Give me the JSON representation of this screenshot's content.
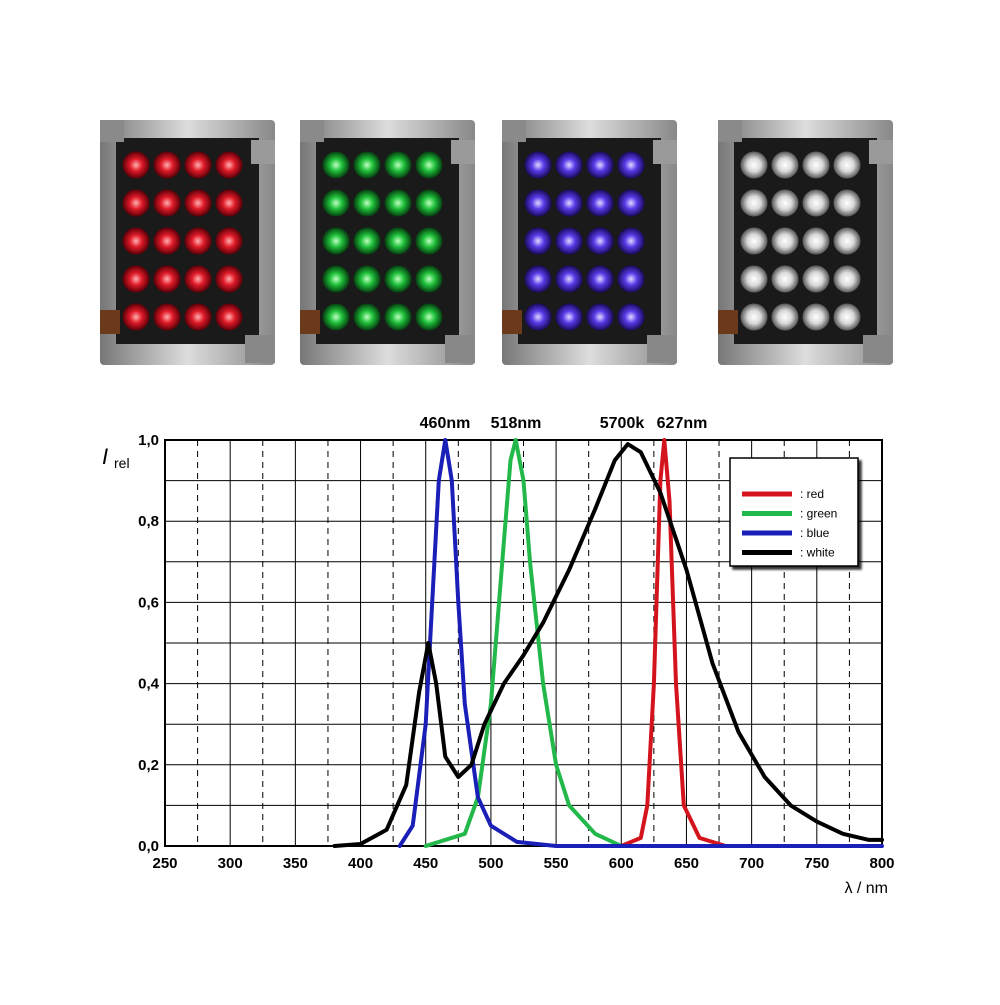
{
  "chart_data": {
    "type": "line",
    "annotations": [
      "460nm",
      "518nm",
      "5700k",
      "627nm"
    ],
    "y_label": "I",
    "y_label_sub": "rel",
    "x_label": "λ / nm",
    "xlim": [
      250,
      800
    ],
    "xticks": [
      250,
      300,
      350,
      400,
      450,
      500,
      550,
      600,
      650,
      700,
      750,
      800
    ],
    "x_minor_ticks": [
      275,
      325,
      375,
      425,
      475,
      525,
      575,
      625,
      675,
      725,
      775
    ],
    "ylim": [
      0,
      1.0
    ],
    "yticks": [
      {
        "value": 0,
        "label": "0,0"
      },
      {
        "value": 0.2,
        "label": "0,2"
      },
      {
        "value": 0.4,
        "label": "0,4"
      },
      {
        "value": 0.6,
        "label": "0,6"
      },
      {
        "value": 0.8,
        "label": "0,8"
      },
      {
        "value": 1.0,
        "label": "1,0"
      }
    ],
    "y_minor_ticks": [
      0.1,
      0.3,
      0.5,
      0.7,
      0.9
    ],
    "grid": true,
    "legend": "upper right",
    "series": [
      {
        "name": ": red",
        "color": "#d4141c",
        "x": [
          600,
          615,
          620,
          625,
          630,
          633,
          637,
          642,
          648,
          660,
          680
        ],
        "values": [
          0,
          0.02,
          0.1,
          0.4,
          0.9,
          1.0,
          0.85,
          0.4,
          0.1,
          0.02,
          0
        ]
      },
      {
        "name": ": green",
        "color": "#22b84a",
        "x": [
          450,
          480,
          490,
          500,
          510,
          515,
          519,
          525,
          530,
          540,
          550,
          560,
          580,
          600
        ],
        "values": [
          0,
          0.03,
          0.12,
          0.35,
          0.75,
          0.95,
          1.0,
          0.9,
          0.7,
          0.4,
          0.2,
          0.1,
          0.03,
          0
        ]
      },
      {
        "name": ": blue",
        "color": "#1a1fb8",
        "x": [
          430,
          440,
          450,
          455,
          460,
          465,
          470,
          475,
          480,
          490,
          500,
          520,
          550,
          800
        ],
        "values": [
          0,
          0.05,
          0.3,
          0.6,
          0.9,
          1.0,
          0.9,
          0.6,
          0.35,
          0.12,
          0.05,
          0.01,
          0,
          0
        ]
      },
      {
        "name": ": white",
        "color": "#000000",
        "x": [
          380,
          400,
          420,
          435,
          445,
          452,
          458,
          465,
          475,
          485,
          495,
          510,
          525,
          540,
          560,
          580,
          595,
          605,
          615,
          630,
          650,
          670,
          690,
          710,
          730,
          750,
          770,
          790,
          800
        ],
        "values": [
          0,
          0.005,
          0.04,
          0.15,
          0.38,
          0.5,
          0.4,
          0.22,
          0.17,
          0.2,
          0.3,
          0.4,
          0.47,
          0.55,
          0.68,
          0.83,
          0.95,
          0.99,
          0.97,
          0.87,
          0.68,
          0.45,
          0.28,
          0.17,
          0.1,
          0.06,
          0.03,
          0.015,
          0.015
        ]
      }
    ]
  }
}
